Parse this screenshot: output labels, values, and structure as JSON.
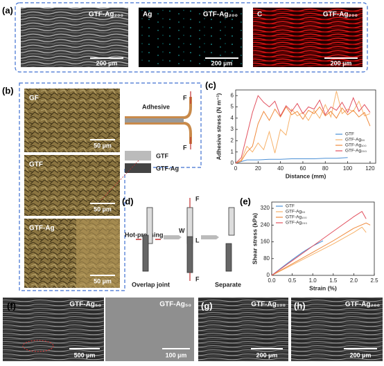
{
  "panels": {
    "a": {
      "label": "(a)",
      "images": [
        {
          "name": "GTF-Ag₂₀₀",
          "scale": "200 µm"
        },
        {
          "element": "Ag",
          "name": "GTF-Ag₂₀₀",
          "scale": "200 µm"
        },
        {
          "element": "C",
          "name": "GTF-Ag₂₀₀",
          "scale": "200 µm"
        }
      ]
    },
    "b": {
      "label": "(b)",
      "images": [
        {
          "name": "GF",
          "scale": "50 µm"
        },
        {
          "name": "GTF",
          "scale": "50 µm"
        },
        {
          "name": "GTF-Ag",
          "scale": "50 µm"
        }
      ],
      "schematic": {
        "adhesive": "Adhesive",
        "force_top": "F",
        "force_bottom": "F",
        "layer_1": "GTF",
        "layer_2": "GTF-Ag"
      }
    },
    "d": {
      "label": "(d)",
      "step_1": "Hot-pressing",
      "width": "W",
      "length": "L",
      "force_top": "F",
      "force_bottom": "F",
      "caption_1": "Overlap joint",
      "caption_2": "Separate"
    },
    "f": {
      "label": "(f)",
      "images": [
        {
          "name": "GTF-Ag₅₀",
          "scale": "500 µm"
        },
        {
          "name": "GTF-Ag₅₀",
          "scale": "100 µm"
        }
      ]
    },
    "g": {
      "label": "(g)",
      "name": "GTF-Ag₁₀₀",
      "scale": "200 µm"
    },
    "h": {
      "label": "(h)",
      "name": "GTF-Ag₂₀₀",
      "scale": "200 µm"
    }
  },
  "chart_data": [
    {
      "type": "line",
      "label": "(c)",
      "xlabel": "Distance (mm)",
      "ylabel": "Adhesive stress (N m⁻¹)",
      "xlim": [
        0,
        125
      ],
      "xticks": [
        0,
        20,
        40,
        60,
        80,
        100,
        120
      ],
      "ylim": [
        0,
        6.5
      ],
      "yticks": [
        0,
        1,
        2,
        3,
        4,
        5,
        6
      ],
      "legend": "lower right",
      "series": [
        {
          "name": "GTF",
          "color": "#4a8fd6",
          "x": [
            0,
            10,
            20,
            30,
            40,
            50,
            60,
            70,
            80,
            90,
            100
          ],
          "values": [
            0,
            0.3,
            0.3,
            0.35,
            0.35,
            0.4,
            0.4,
            0.4,
            0.45,
            0.45,
            0.5
          ]
        },
        {
          "name": "GTF-Ag₅₀",
          "color": "#f7b26a",
          "x": [
            0,
            5,
            10,
            15,
            20,
            25,
            30,
            35,
            40,
            45,
            50,
            55,
            60,
            65,
            70,
            75,
            80,
            85,
            90,
            95,
            100,
            105,
            110,
            115,
            120
          ],
          "values": [
            0,
            0.3,
            1.5,
            1.0,
            1.8,
            1.2,
            2.8,
            0.9,
            3.0,
            2.5,
            4.8,
            4.2,
            4.5,
            3.8,
            4.7,
            4.0,
            5.2,
            4.1,
            6.4,
            4.4,
            4.8,
            4.6,
            5.5,
            4.2,
            4.4
          ]
        },
        {
          "name": "GTF-Ag₁₀₀",
          "color": "#f08a3c",
          "x": [
            0,
            5,
            10,
            15,
            20,
            25,
            30,
            35,
            40,
            45,
            50,
            55,
            60,
            65,
            70,
            75,
            80,
            85,
            90,
            95,
            100,
            105,
            110,
            115,
            120
          ],
          "values": [
            0,
            0.2,
            1.0,
            1.5,
            3.5,
            4.6,
            3.8,
            4.8,
            4.1,
            5.0,
            4.3,
            4.6,
            3.9,
            4.7,
            4.4,
            5.0,
            4.2,
            4.6,
            4.0,
            4.9,
            4.3,
            4.7,
            4.1,
            4.5,
            3.3
          ]
        },
        {
          "name": "GTF-Ag₂₀₀",
          "color": "#e2505e",
          "x": [
            0,
            5,
            10,
            15,
            20,
            25,
            30,
            35,
            40,
            45,
            50,
            55,
            60,
            65,
            70,
            75,
            80,
            85,
            90,
            95,
            100,
            105,
            110,
            115,
            120
          ],
          "values": [
            0,
            0.5,
            2.5,
            4.5,
            6.0,
            5.4,
            5.0,
            5.5,
            4.2,
            5.1,
            4.6,
            5.3,
            4.4,
            5.0,
            4.8,
            5.6,
            4.3,
            5.0,
            4.7,
            5.4,
            4.5,
            5.8,
            4.6,
            5.2,
            4.5
          ]
        }
      ]
    },
    {
      "type": "line",
      "label": "(e)",
      "xlabel": "Strain (%)",
      "ylabel": "Shear stress (kPa)",
      "xlim": [
        0,
        2.5
      ],
      "xticks": [
        {
          "value": 0,
          "label": "0.0"
        },
        0.5,
        {
          "value": 1,
          "label": "1.0"
        },
        1.5,
        {
          "value": 2,
          "label": "2.0"
        },
        2.5
      ],
      "ylim": [
        0,
        350
      ],
      "yticks": [
        0,
        80,
        160,
        240,
        320
      ],
      "legend": "upper left",
      "series": [
        {
          "name": "GTF",
          "color": "#4a8fd6",
          "x": [
            0,
            0.25,
            0.5,
            0.75,
            1.0,
            1.25
          ],
          "values": [
            0,
            38,
            75,
            110,
            140,
            165
          ]
        },
        {
          "name": "GTF-Ag₅₀",
          "color": "#f7b26a",
          "x": [
            0,
            0.5,
            1.0,
            1.5,
            2.0,
            2.2,
            2.3
          ],
          "values": [
            0,
            50,
            100,
            150,
            205,
            230,
            205
          ]
        },
        {
          "name": "GTF-Ag₁₀₀",
          "color": "#f08a3c",
          "x": [
            0,
            0.5,
            1.0,
            1.5,
            2.0,
            2.3,
            2.4
          ],
          "values": [
            0,
            55,
            110,
            165,
            225,
            250,
            240
          ]
        },
        {
          "name": "GTF-Ag₂₀₀",
          "color": "#e2505e",
          "x": [
            0,
            0.5,
            1.0,
            1.5,
            2.0,
            2.2,
            2.3
          ],
          "values": [
            0,
            70,
            140,
            210,
            280,
            305,
            270
          ]
        }
      ]
    }
  ]
}
